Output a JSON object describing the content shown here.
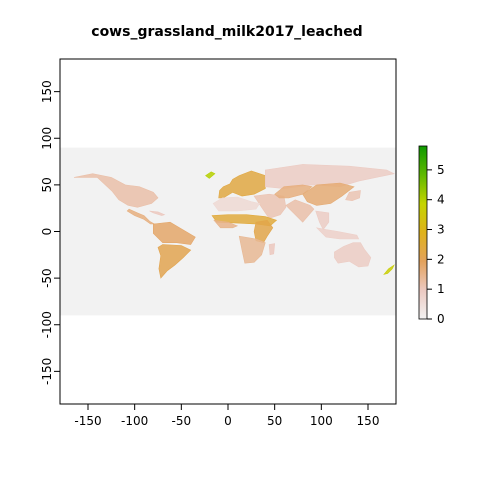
{
  "chart_data": {
    "type": "heatmap",
    "title": "cows_grassland_milk2017_leached",
    "xlabel": "",
    "ylabel": "",
    "xlim": [
      -180,
      180
    ],
    "ylim": [
      -185,
      185
    ],
    "raster_extent": {
      "x": [
        -180,
        180
      ],
      "y": [
        -90,
        90
      ]
    },
    "background_value_color": "#f2f2f2",
    "x_ticks": [
      -150,
      -100,
      -50,
      0,
      50,
      100,
      150
    ],
    "y_ticks": [
      -150,
      -100,
      -50,
      0,
      50,
      100,
      150
    ],
    "x_tick_labels": [
      "-150",
      "-100",
      "-50",
      "0",
      "50",
      "100",
      "150"
    ],
    "y_tick_labels": [
      "-150",
      "-100",
      "-50",
      "0",
      "50",
      "100",
      "150"
    ],
    "legend": {
      "placement": "right",
      "min": 0,
      "max": 5.8,
      "ticks": [
        0,
        1,
        2,
        3,
        4,
        5
      ],
      "tick_labels": [
        "0",
        "1",
        "2",
        "3",
        "4",
        "5"
      ],
      "colors": [
        "#f2f2f2",
        "#ecc9c1",
        "#e3a25c",
        "#dfb21b",
        "#c4d400",
        "#5fb800",
        "#0f9900"
      ]
    },
    "regions": [
      {
        "name": "north-america",
        "value": 1.2,
        "points": [
          [
            -165,
            58
          ],
          [
            -145,
            62
          ],
          [
            -125,
            58
          ],
          [
            -110,
            50
          ],
          [
            -95,
            48
          ],
          [
            -80,
            42
          ],
          [
            -75,
            36
          ],
          [
            -82,
            30
          ],
          [
            -97,
            26
          ],
          [
            -107,
            28
          ],
          [
            -117,
            34
          ],
          [
            -124,
            43
          ],
          [
            -140,
            58
          ]
        ]
      },
      {
        "name": "central-america",
        "value": 1.6,
        "points": [
          [
            -106,
            24
          ],
          [
            -97,
            20
          ],
          [
            -90,
            17
          ],
          [
            -84,
            11
          ],
          [
            -79,
            8
          ],
          [
            -83,
            8
          ],
          [
            -90,
            13
          ],
          [
            -100,
            17
          ],
          [
            -108,
            22
          ]
        ]
      },
      {
        "name": "caribbean",
        "value": 1.0,
        "points": [
          [
            -84,
            22
          ],
          [
            -75,
            21
          ],
          [
            -68,
            18
          ],
          [
            -71,
            17
          ],
          [
            -80,
            20
          ]
        ]
      },
      {
        "name": "south-america-north",
        "value": 1.8,
        "points": [
          [
            -80,
            8
          ],
          [
            -62,
            10
          ],
          [
            -52,
            4
          ],
          [
            -35,
            -6
          ],
          [
            -40,
            -14
          ],
          [
            -55,
            -12
          ],
          [
            -70,
            -12
          ],
          [
            -80,
            -2
          ]
        ]
      },
      {
        "name": "south-america-south",
        "value": 2.1,
        "points": [
          [
            -70,
            -14
          ],
          [
            -50,
            -15
          ],
          [
            -40,
            -20
          ],
          [
            -48,
            -28
          ],
          [
            -57,
            -36
          ],
          [
            -65,
            -42
          ],
          [
            -72,
            -50
          ],
          [
            -74,
            -40
          ],
          [
            -72,
            -26
          ],
          [
            -75,
            -17
          ]
        ]
      },
      {
        "name": "greenland-patch",
        "value": 4.0,
        "points": [
          [
            -24,
            60
          ],
          [
            -18,
            64
          ],
          [
            -14,
            62
          ],
          [
            -20,
            57
          ]
        ]
      },
      {
        "name": "europe",
        "value": 2.3,
        "points": [
          [
            -10,
            36
          ],
          [
            -9,
            44
          ],
          [
            -5,
            48
          ],
          [
            2,
            51
          ],
          [
            5,
            56
          ],
          [
            12,
            60
          ],
          [
            25,
            65
          ],
          [
            40,
            60
          ],
          [
            40,
            46
          ],
          [
            28,
            40
          ],
          [
            15,
            38
          ],
          [
            5,
            42
          ],
          [
            -5,
            36
          ]
        ]
      },
      {
        "name": "russia",
        "value": 0.9,
        "points": [
          [
            40,
            48
          ],
          [
            40,
            66
          ],
          [
            80,
            72
          ],
          [
            130,
            70
          ],
          [
            170,
            66
          ],
          [
            178,
            62
          ],
          [
            140,
            54
          ],
          [
            120,
            48
          ],
          [
            90,
            50
          ],
          [
            60,
            46
          ]
        ]
      },
      {
        "name": "middle-east",
        "value": 1.1,
        "points": [
          [
            28,
            38
          ],
          [
            44,
            40
          ],
          [
            60,
            38
          ],
          [
            62,
            26
          ],
          [
            56,
            18
          ],
          [
            44,
            14
          ],
          [
            36,
            26
          ],
          [
            32,
            32
          ]
        ]
      },
      {
        "name": "north-africa",
        "value": 0.6,
        "points": [
          [
            -16,
            30
          ],
          [
            -6,
            36
          ],
          [
            10,
            37
          ],
          [
            25,
            32
          ],
          [
            34,
            30
          ],
          [
            30,
            24
          ],
          [
            10,
            22
          ],
          [
            -10,
            22
          ]
        ]
      },
      {
        "name": "sahel",
        "value": 2.4,
        "points": [
          [
            -17,
            17
          ],
          [
            0,
            18
          ],
          [
            20,
            18
          ],
          [
            40,
            16
          ],
          [
            52,
            12
          ],
          [
            45,
            6
          ],
          [
            30,
            8
          ],
          [
            10,
            9
          ],
          [
            -12,
            10
          ]
        ]
      },
      {
        "name": "west-africa",
        "value": 1.5,
        "points": [
          [
            -15,
            12
          ],
          [
            0,
            10
          ],
          [
            10,
            6
          ],
          [
            5,
            4
          ],
          [
            -8,
            4
          ]
        ]
      },
      {
        "name": "east-africa",
        "value": 2.2,
        "points": [
          [
            30,
            10
          ],
          [
            42,
            12
          ],
          [
            48,
            4
          ],
          [
            42,
            -5
          ],
          [
            38,
            -12
          ],
          [
            30,
            -10
          ],
          [
            28,
            0
          ]
        ]
      },
      {
        "name": "southern-africa",
        "value": 1.4,
        "points": [
          [
            12,
            -5
          ],
          [
            30,
            -8
          ],
          [
            40,
            -12
          ],
          [
            36,
            -25
          ],
          [
            28,
            -33
          ],
          [
            18,
            -34
          ],
          [
            15,
            -20
          ]
        ]
      },
      {
        "name": "madagascar",
        "value": 1.0,
        "points": [
          [
            44,
            -14
          ],
          [
            50,
            -13
          ],
          [
            49,
            -24
          ],
          [
            45,
            -25
          ]
        ]
      },
      {
        "name": "central-asia",
        "value": 1.6,
        "points": [
          [
            50,
            40
          ],
          [
            60,
            48
          ],
          [
            80,
            50
          ],
          [
            90,
            48
          ],
          [
            80,
            40
          ],
          [
            65,
            36
          ],
          [
            55,
            36
          ]
        ]
      },
      {
        "name": "china-mongolia",
        "value": 1.7,
        "points": [
          [
            80,
            40
          ],
          [
            95,
            50
          ],
          [
            120,
            52
          ],
          [
            135,
            48
          ],
          [
            122,
            38
          ],
          [
            110,
            30
          ],
          [
            95,
            28
          ],
          [
            85,
            32
          ]
        ]
      },
      {
        "name": "japan-korea",
        "value": 1.1,
        "points": [
          [
            126,
            34
          ],
          [
            130,
            42
          ],
          [
            142,
            44
          ],
          [
            141,
            36
          ],
          [
            133,
            33
          ]
        ]
      },
      {
        "name": "south-asia",
        "value": 1.2,
        "points": [
          [
            62,
            28
          ],
          [
            72,
            34
          ],
          [
            88,
            28
          ],
          [
            92,
            24
          ],
          [
            80,
            10
          ],
          [
            72,
            18
          ]
        ]
      },
      {
        "name": "southeast-asia",
        "value": 0.9,
        "points": [
          [
            94,
            22
          ],
          [
            108,
            20
          ],
          [
            108,
            10
          ],
          [
            102,
            2
          ],
          [
            98,
            10
          ]
        ]
      },
      {
        "name": "indonesia",
        "value": 0.8,
        "points": [
          [
            95,
            4
          ],
          [
            105,
            -6
          ],
          [
            120,
            -8
          ],
          [
            140,
            -8
          ],
          [
            138,
            -4
          ],
          [
            118,
            0
          ],
          [
            105,
            2
          ]
        ]
      },
      {
        "name": "australia",
        "value": 0.9,
        "points": [
          [
            114,
            -22
          ],
          [
            124,
            -16
          ],
          [
            134,
            -12
          ],
          [
            142,
            -12
          ],
          [
            146,
            -19
          ],
          [
            153,
            -28
          ],
          [
            150,
            -37
          ],
          [
            140,
            -38
          ],
          [
            130,
            -32
          ],
          [
            118,
            -34
          ],
          [
            114,
            -28
          ]
        ]
      },
      {
        "name": "new-zealand",
        "value": 3.7,
        "points": [
          [
            167,
            -46
          ],
          [
            172,
            -40
          ],
          [
            178,
            -36
          ],
          [
            176,
            -40
          ],
          [
            171,
            -45
          ]
        ]
      }
    ]
  }
}
